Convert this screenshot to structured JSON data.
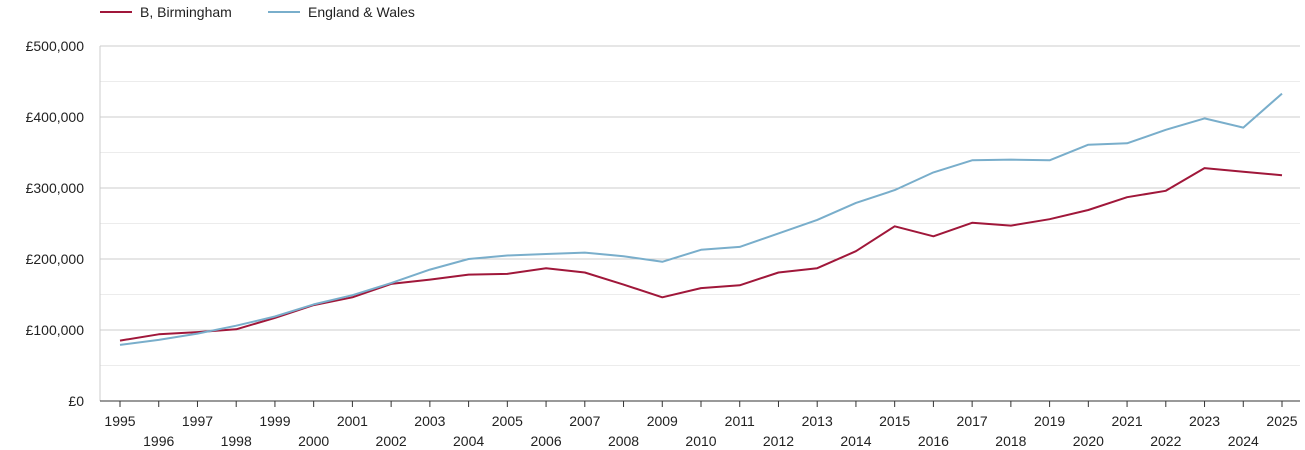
{
  "chart_data": {
    "type": "line",
    "title": "",
    "xlabel": "",
    "ylabel": "",
    "x": [
      1995,
      1996,
      1997,
      1998,
      1999,
      2000,
      2001,
      2002,
      2003,
      2004,
      2005,
      2006,
      2007,
      2008,
      2009,
      2010,
      2011,
      2012,
      2013,
      2014,
      2015,
      2016,
      2017,
      2018,
      2019,
      2020,
      2021,
      2022,
      2023,
      2024,
      2025
    ],
    "ylim": [
      0,
      500000
    ],
    "y_ticks": [
      0,
      100000,
      200000,
      300000,
      400000,
      500000
    ],
    "y_tick_labels": [
      "£0",
      "£100,000",
      "£200,000",
      "£300,000",
      "£400,000",
      "£500,000"
    ],
    "grid": true,
    "legend_position": "top-left",
    "series": [
      {
        "name": "B, Birmingham",
        "color": "#a0173a",
        "values": [
          85000,
          94000,
          97000,
          101000,
          117000,
          135000,
          146000,
          165000,
          171000,
          178000,
          179000,
          187000,
          181000,
          164000,
          146000,
          159000,
          163000,
          181000,
          187000,
          211000,
          246000,
          232000,
          251000,
          247000,
          256000,
          269000,
          287000,
          296000,
          328000,
          323000,
          318000
        ]
      },
      {
        "name": "England & Wales",
        "color": "#79aecb",
        "values": [
          79000,
          86000,
          95000,
          106000,
          119000,
          136000,
          149000,
          166000,
          185000,
          200000,
          205000,
          207000,
          209000,
          204000,
          196000,
          213000,
          217000,
          236000,
          255000,
          279000,
          297000,
          322000,
          339000,
          340000,
          339000,
          361000,
          363000,
          382000,
          398000,
          385000,
          433000
        ]
      }
    ]
  }
}
